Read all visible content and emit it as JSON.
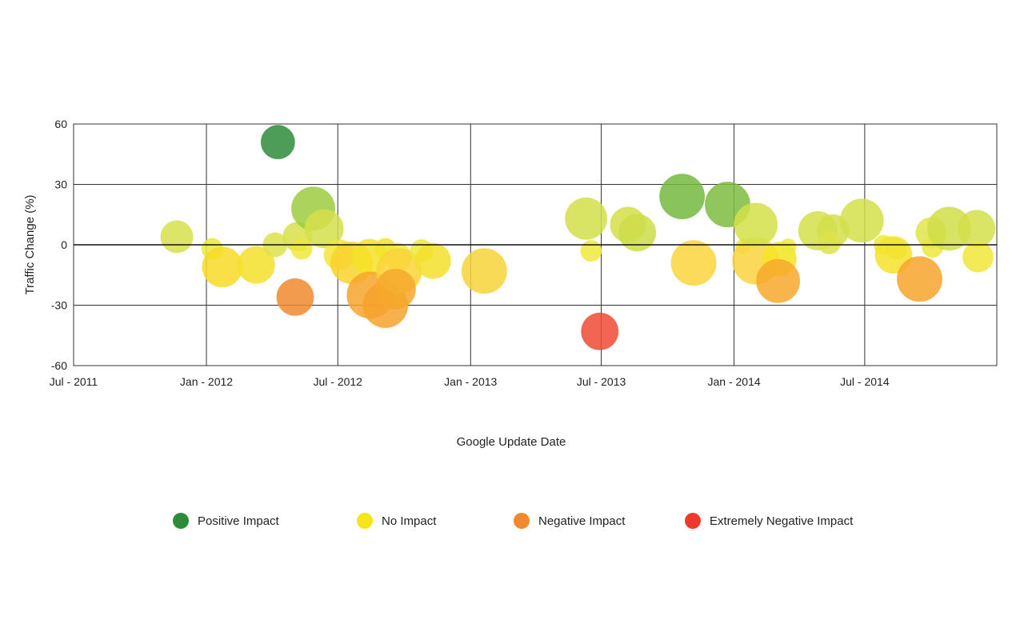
{
  "chart_data": {
    "type": "scatter",
    "subtype": "bubble",
    "title": "",
    "xlabel": "Google Update Date",
    "ylabel": "Traffic Change (%)",
    "xlim": [
      "2011-07-01",
      "2014-12-31"
    ],
    "ylim": [
      -60,
      60
    ],
    "x_ticks": [
      "2011-07-01",
      "2012-01-01",
      "2012-07-01",
      "2013-01-01",
      "2013-07-01",
      "2014-01-01",
      "2014-07-01"
    ],
    "x_tick_labels": [
      "Jul - 2011",
      "Jan - 2012",
      "Jul - 2012",
      "Jan - 2013",
      "Jul - 2013",
      "Jan - 2014",
      "Jul - 2014"
    ],
    "y_ticks": [
      -60,
      -30,
      0,
      30,
      60
    ],
    "y_tick_labels": [
      "-60",
      "-30",
      "0",
      "30",
      "60"
    ],
    "grid": true,
    "legend_position": "bottom",
    "colors": {
      "dark_green": "#2e8b3a",
      "light_green": "#8cc63f",
      "yellow_green": "#cddc39",
      "yellow": "#f5e61a",
      "gold": "#fdd835",
      "amber": "#f9a825",
      "orange": "#f08a30",
      "red": "#ee3a2a"
    },
    "legend": [
      {
        "label": "Positive Impact",
        "color": "#2e8b3a"
      },
      {
        "label": "No Impact",
        "color": "#f5e61a"
      },
      {
        "label": "Negative Impact",
        "color": "#f08a30"
      },
      {
        "label": "Extremely Negative Impact",
        "color": "#ee3a2a"
      }
    ],
    "points": [
      {
        "date": "2011-11-21",
        "y": 4,
        "size": 20,
        "color": "#d6e04a"
      },
      {
        "date": "2012-01-09",
        "y": -2,
        "size": 13,
        "color": "#eaea3c"
      },
      {
        "date": "2012-01-23",
        "y": -11,
        "size": 25,
        "color": "#f8da26"
      },
      {
        "date": "2012-03-10",
        "y": -10,
        "size": 23,
        "color": "#f4e02a"
      },
      {
        "date": "2012-04-05",
        "y": 0,
        "size": 15,
        "color": "#dde24c"
      },
      {
        "date": "2012-04-09",
        "y": 51,
        "size": 21,
        "color": "#2e8b3a"
      },
      {
        "date": "2012-05-06",
        "y": 4,
        "size": 18,
        "color": "#d8df4a"
      },
      {
        "date": "2012-05-03",
        "y": -26,
        "size": 23,
        "color": "#f08a30"
      },
      {
        "date": "2012-05-12",
        "y": -2,
        "size": 13,
        "color": "#efe93a"
      },
      {
        "date": "2012-05-28",
        "y": 18,
        "size": 27,
        "color": "#9dcb3e"
      },
      {
        "date": "2012-06-12",
        "y": 8,
        "size": 24,
        "color": "#d3df4a"
      },
      {
        "date": "2012-07-03",
        "y": -5,
        "size": 19,
        "color": "#f2e63a"
      },
      {
        "date": "2012-07-20",
        "y": -9,
        "size": 26,
        "color": "#f9d22c"
      },
      {
        "date": "2012-08-14",
        "y": -6,
        "size": 22,
        "color": "#f5e228"
      },
      {
        "date": "2012-08-15",
        "y": -25,
        "size": 29,
        "color": "#f7a52c"
      },
      {
        "date": "2012-09-05",
        "y": -30,
        "size": 28,
        "color": "#f6a22c"
      },
      {
        "date": "2012-09-05",
        "y": -2,
        "size": 13,
        "color": "#f2e328"
      },
      {
        "date": "2012-09-22",
        "y": -6,
        "size": 17,
        "color": "#efe93a"
      },
      {
        "date": "2012-09-24",
        "y": -13,
        "size": 28,
        "color": "#fad338"
      },
      {
        "date": "2012-09-19",
        "y": -22,
        "size": 25,
        "color": "#f6a82a"
      },
      {
        "date": "2012-10-25",
        "y": -3,
        "size": 14,
        "color": "#ece83e"
      },
      {
        "date": "2012-11-10",
        "y": -8,
        "size": 22,
        "color": "#f3e02c"
      },
      {
        "date": "2013-01-20",
        "y": -13,
        "size": 28,
        "color": "#f8d43a"
      },
      {
        "date": "2013-06-10",
        "y": 13,
        "size": 26,
        "color": "#d2df4a"
      },
      {
        "date": "2013-06-17",
        "y": -3,
        "size": 13,
        "color": "#eee93c"
      },
      {
        "date": "2013-06-29",
        "y": -43,
        "size": 23,
        "color": "#ee4a34"
      },
      {
        "date": "2013-08-07",
        "y": 10,
        "size": 22,
        "color": "#d4df48"
      },
      {
        "date": "2013-08-20",
        "y": 6,
        "size": 23,
        "color": "#cddd48"
      },
      {
        "date": "2013-10-21",
        "y": 24,
        "size": 28,
        "color": "#74b840"
      },
      {
        "date": "2013-11-06",
        "y": -9,
        "size": 28,
        "color": "#fad53c"
      },
      {
        "date": "2013-12-23",
        "y": 20,
        "size": 28,
        "color": "#7cbc3e"
      },
      {
        "date": "2014-01-13",
        "y": -1,
        "size": 9,
        "color": "#f0ea3a"
      },
      {
        "date": "2014-01-31",
        "y": -8,
        "size": 29,
        "color": "#fad33e"
      },
      {
        "date": "2014-01-31",
        "y": 10,
        "size": 27,
        "color": "#d4e048"
      },
      {
        "date": "2014-03-05",
        "y": -7,
        "size": 21,
        "color": "#f4e526"
      },
      {
        "date": "2014-03-03",
        "y": -18,
        "size": 27,
        "color": "#f7a82a"
      },
      {
        "date": "2014-03-17",
        "y": -1,
        "size": 10,
        "color": "#f0ea3a"
      },
      {
        "date": "2014-04-27",
        "y": 7,
        "size": 24,
        "color": "#d4df4a"
      },
      {
        "date": "2014-05-18",
        "y": 7,
        "size": 20,
        "color": "#d4df4a"
      },
      {
        "date": "2014-05-13",
        "y": 1,
        "size": 14,
        "color": "#dde24c"
      },
      {
        "date": "2014-06-27",
        "y": 12,
        "size": 27,
        "color": "#d3df4a"
      },
      {
        "date": "2014-07-27",
        "y": 0,
        "size": 12,
        "color": "#f0ea3a"
      },
      {
        "date": "2014-08-14",
        "y": -2,
        "size": 13,
        "color": "#dde24c"
      },
      {
        "date": "2014-08-10",
        "y": -5,
        "size": 23,
        "color": "#f6e22a"
      },
      {
        "date": "2014-09-15",
        "y": -17,
        "size": 28,
        "color": "#f7a52c"
      },
      {
        "date": "2014-10-01",
        "y": 6,
        "size": 19,
        "color": "#e0e44a"
      },
      {
        "date": "2014-10-03",
        "y": -1,
        "size": 13,
        "color": "#ece83e"
      },
      {
        "date": "2014-10-26",
        "y": 8,
        "size": 27,
        "color": "#d0de48"
      },
      {
        "date": "2014-12-03",
        "y": 8,
        "size": 23,
        "color": "#d4df4a"
      },
      {
        "date": "2014-12-05",
        "y": -6,
        "size": 19,
        "color": "#f0e83a"
      }
    ]
  }
}
